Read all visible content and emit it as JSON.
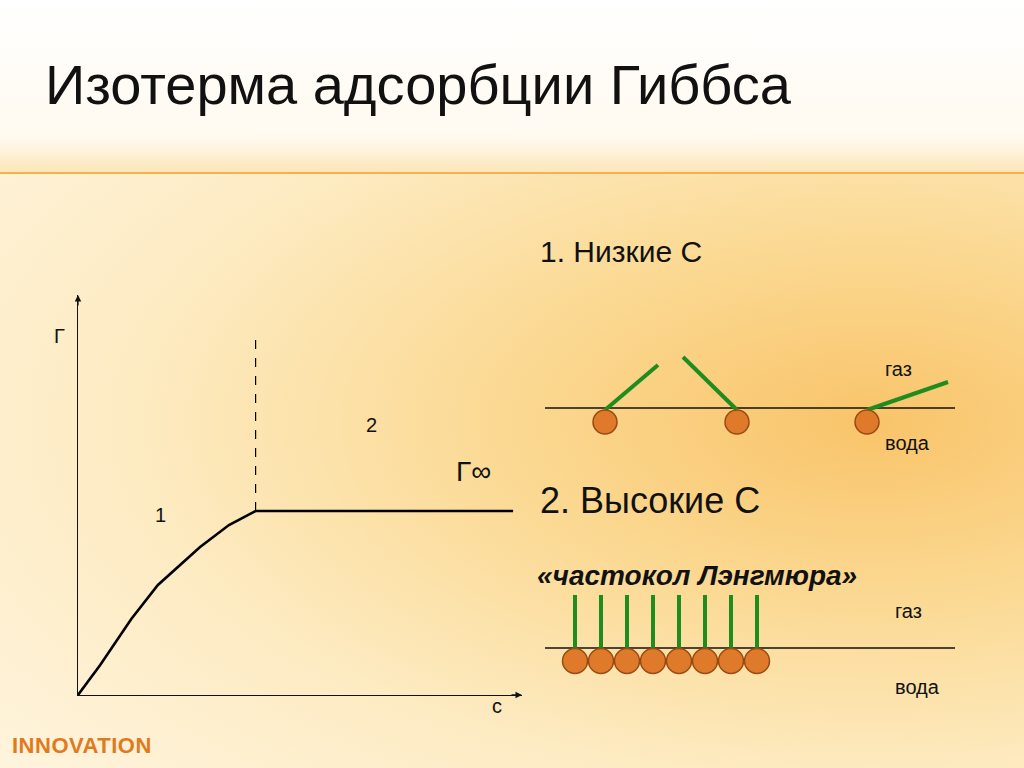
{
  "slide": {
    "title": "Изотерма адсорбции Гиббса",
    "footer": "INNOVATION"
  },
  "chart_data": {
    "type": "line",
    "xlabel": "c",
    "ylabel": "Г",
    "xlim": [
      0,
      10
    ],
    "ylim": [
      0,
      10
    ],
    "tick_labels": false,
    "grid": false,
    "series": [
      {
        "x": [
          0,
          0.5,
          1.2,
          1.8,
          2.75,
          3.4,
          4.0,
          9.8
        ],
        "values": [
          0,
          0.75,
          1.9,
          2.75,
          3.7,
          4.25,
          4.6,
          4.6
        ],
        "color": "#000000",
        "line_style": "solid"
      },
      {
        "x": [
          4.0,
          4.0
        ],
        "values": [
          4.6,
          8.9
        ],
        "color": "#000000",
        "line_style": "dash"
      }
    ],
    "annotations": [
      {
        "text": "1",
        "x": 1.85,
        "y": 4.5
      },
      {
        "text": "2",
        "x": 6.6,
        "y": 6.75
      },
      {
        "text": "Г∞",
        "x": 8.9,
        "y": 5.6
      }
    ]
  },
  "diagrams": [
    {
      "heading": "1. Низкие С",
      "upper_label": "газ",
      "lower_label": "вода"
    },
    {
      "heading": "2. Высокие С",
      "subheading": "«частокол Лэнгмюра»",
      "upper_label": "газ",
      "lower_label": "вода"
    }
  ]
}
